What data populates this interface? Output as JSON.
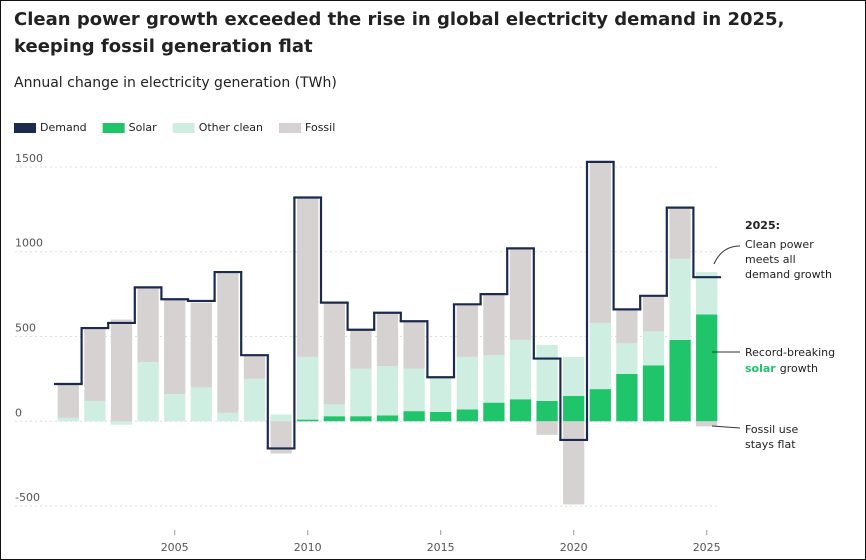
{
  "chart_data": {
    "type": "stacked-bar-step",
    "title": [
      "Clean power growth exceeded the rise in global electricity demand in 2025,",
      "keeping fossil generation flat"
    ],
    "subtitle": "Annual change in electricity generation (TWh)",
    "x": [
      2001,
      2002,
      2003,
      2004,
      2005,
      2006,
      2007,
      2008,
      2009,
      2010,
      2011,
      2012,
      2013,
      2014,
      2015,
      2016,
      2017,
      2018,
      2019,
      2020,
      2021,
      2022,
      2023,
      2024,
      2025
    ],
    "xlim": [
      2000.5,
      2025.5
    ],
    "xticks": [
      2005,
      2010,
      2015,
      2020,
      2025
    ],
    "ylim": [
      -700,
      1600
    ],
    "yticks": [
      -500,
      0,
      500,
      1000,
      1500
    ],
    "grid": true,
    "legend": "top-left",
    "series": [
      {
        "name": "Demand",
        "kind": "step",
        "color": "#1b2a4e",
        "values": [
          220,
          550,
          580,
          790,
          720,
          710,
          880,
          390,
          -160,
          1320,
          700,
          540,
          640,
          590,
          260,
          690,
          750,
          1020,
          370,
          -110,
          1530,
          660,
          740,
          1260,
          850
        ]
      },
      {
        "name": "Solar",
        "kind": "bar",
        "color": "#1fc46b",
        "values": [
          0,
          0,
          0,
          0,
          0,
          0,
          0,
          0,
          0,
          10,
          30,
          30,
          35,
          60,
          55,
          70,
          110,
          130,
          120,
          150,
          190,
          280,
          330,
          480,
          630
        ]
      },
      {
        "name": "Other clean",
        "kind": "bar",
        "color": "#cdeee0",
        "values": [
          20,
          120,
          -20,
          350,
          160,
          200,
          50,
          250,
          40,
          370,
          70,
          280,
          290,
          250,
          200,
          310,
          280,
          350,
          330,
          230,
          390,
          180,
          200,
          480,
          250
        ]
      },
      {
        "name": "Fossil",
        "kind": "bar",
        "color": "#d6d2d2",
        "values": [
          200,
          430,
          600,
          440,
          560,
          500,
          830,
          140,
          -190,
          940,
          600,
          230,
          310,
          280,
          5,
          310,
          360,
          540,
          -80,
          -490,
          950,
          200,
          210,
          300,
          -30
        ]
      }
    ],
    "annotations": {
      "year": "2025:",
      "clean": [
        "Clean power",
        "meets all",
        "demand growth"
      ],
      "solar": [
        "Record-breaking",
        "solar",
        "growth"
      ],
      "fossil": [
        "Fossil use",
        "stays flat"
      ]
    }
  }
}
